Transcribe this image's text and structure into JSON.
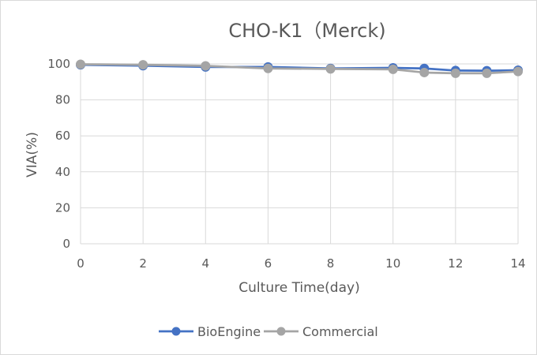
{
  "chart_data": {
    "type": "line",
    "title": "CHO-K1（Merck)",
    "xlabel": "Culture Time(day)",
    "ylabel": "VIA(%)",
    "xlim": [
      0,
      14
    ],
    "ylim": [
      0,
      100
    ],
    "x_ticks": [
      "0",
      "2",
      "4",
      "6",
      "8",
      "10",
      "12",
      "14"
    ],
    "y_ticks": [
      "0",
      "20",
      "40",
      "60",
      "80",
      "100"
    ],
    "grid": true,
    "legend_position": "bottom",
    "x": [
      0,
      2,
      4,
      6,
      8,
      10,
      11,
      12,
      13,
      14
    ],
    "series": [
      {
        "name": "BioEngine",
        "color": "#4472c4",
        "values": [
          99.5,
          99.0,
          98.3,
          98.3,
          97.5,
          97.8,
          97.5,
          96.3,
          96.2,
          96.5
        ]
      },
      {
        "name": "Commercial",
        "color": "#a5a5a5",
        "values": [
          99.8,
          99.5,
          98.9,
          97.5,
          97.2,
          97.0,
          95.2,
          94.8,
          94.8,
          95.8
        ]
      }
    ]
  }
}
